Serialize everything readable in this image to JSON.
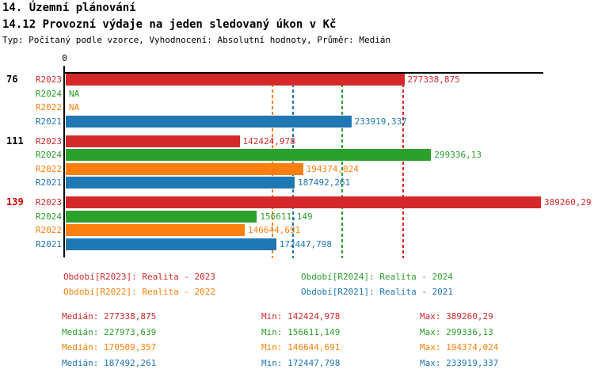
{
  "header": {
    "title": "14. Územní plánování",
    "subtitle": "14.12 Provozní výdaje na jeden sledovaný úkon v Kč",
    "meta": "Typ: Počítaný podle vzorce, Vyhodnocení: Absolutní hodnoty, Průměr: Medián"
  },
  "chart_data": {
    "type": "bar",
    "orientation": "horizontal",
    "axis_zero_label": "0",
    "xlim": [
      0,
      389260.29
    ],
    "grid": false,
    "series_colors": {
      "R2023": "#d4282a",
      "R2024": "#2ca02c",
      "R2022": "#ff7f0e",
      "R2021": "#1f77b4"
    },
    "groups": [
      {
        "label": "76",
        "label_color": "#000000",
        "bars": [
          {
            "series": "R2023",
            "value": 277338.875,
            "display": "277338,875"
          },
          {
            "series": "R2024",
            "value": null,
            "display": "NA"
          },
          {
            "series": "R2022",
            "value": null,
            "display": "NA"
          },
          {
            "series": "R2021",
            "value": 233919.337,
            "display": "233919,337"
          }
        ]
      },
      {
        "label": "111",
        "label_color": "#000000",
        "bars": [
          {
            "series": "R2023",
            "value": 142424.978,
            "display": "142424,978"
          },
          {
            "series": "R2024",
            "value": 299336.13,
            "display": "299336,13"
          },
          {
            "series": "R2022",
            "value": 194374.024,
            "display": "194374,024"
          },
          {
            "series": "R2021",
            "value": 187492.261,
            "display": "187492,261"
          }
        ]
      },
      {
        "label": "139",
        "label_color": "#cc0000",
        "bars": [
          {
            "series": "R2023",
            "value": 389260.29,
            "display": "389260,29"
          },
          {
            "series": "R2024",
            "value": 156611.149,
            "display": "156611,149"
          },
          {
            "series": "R2022",
            "value": 146644.691,
            "display": "146644,691"
          },
          {
            "series": "R2021",
            "value": 172447.798,
            "display": "172447,798"
          }
        ]
      }
    ],
    "median_lines": [
      {
        "series": "R2022",
        "value": 170509.357
      },
      {
        "series": "R2021",
        "value": 187492.261
      },
      {
        "series": "R2024",
        "value": 227973.639
      },
      {
        "series": "R2023",
        "value": 277338.875
      }
    ]
  },
  "legend": {
    "items": [
      {
        "series": "R2023",
        "text": "Období[R2023]: Realita - 2023"
      },
      {
        "series": "R2024",
        "text": "Období[R2024]: Realita - 2024"
      },
      {
        "series": "R2022",
        "text": "Období[R2022]: Realita - 2022"
      },
      {
        "series": "R2021",
        "text": "Období[R2021]: Realita - 2021"
      }
    ]
  },
  "stats": {
    "labels": {
      "median": "Medián:",
      "min": "Min:",
      "max": "Max:"
    },
    "rows": [
      {
        "series": "R2023",
        "median": "277338,875",
        "min": "142424,978",
        "max": "389260,29"
      },
      {
        "series": "R2024",
        "median": "227973,639",
        "min": "156611,149",
        "max": "299336,13"
      },
      {
        "series": "R2022",
        "median": "170509,357",
        "min": "146644,691",
        "max": "194374,024"
      },
      {
        "series": "R2021",
        "median": "187492,261",
        "min": "172447,798",
        "max": "233919,337"
      }
    ]
  }
}
